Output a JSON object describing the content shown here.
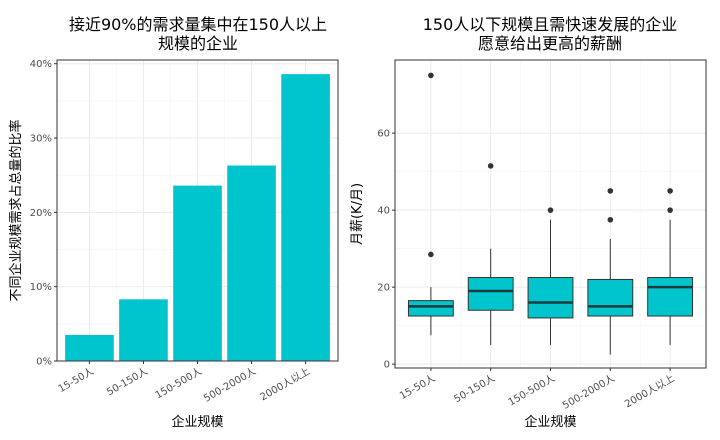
{
  "chart_data": [
    {
      "type": "bar",
      "title_lines": [
        "接近90%的需求量集中在150人以上",
        "规模的企业"
      ],
      "xlabel": "企业规模",
      "ylabel": "不同企业规模需求占总量的比率",
      "categories": [
        "15-50人",
        "50-150人",
        "150-500人",
        "500-2000人",
        "2000人以上"
      ],
      "values": [
        0.035,
        0.083,
        0.236,
        0.263,
        0.386
      ],
      "ylim": [
        0,
        0.405
      ],
      "yticks": [
        0,
        0.1,
        0.2,
        0.3,
        0.4
      ],
      "ytick_labels": [
        "0%",
        "10%",
        "20%",
        "30%",
        "40%"
      ],
      "bar_color": "#00c5cd",
      "grid": true
    },
    {
      "type": "boxplot",
      "title_lines": [
        "150人以下规模且需快速发展的企业",
        "愿意给出更高的薪酬"
      ],
      "xlabel": "企业规模",
      "ylabel": "月薪(K/月)",
      "categories": [
        "15-50人",
        "50-150人",
        "150-500人",
        "500-2000人",
        "2000人以上"
      ],
      "boxes": [
        {
          "whisker_low": 7.5,
          "q1": 12.5,
          "median": 15,
          "q3": 16.5,
          "whisker_high": 20,
          "outliers": [
            75,
            28.5
          ]
        },
        {
          "whisker_low": 5,
          "q1": 14,
          "median": 19,
          "q3": 22.5,
          "whisker_high": 30,
          "outliers": [
            51.5
          ]
        },
        {
          "whisker_low": 5,
          "q1": 12,
          "median": 16,
          "q3": 22.5,
          "whisker_high": 37.5,
          "outliers": [
            40
          ]
        },
        {
          "whisker_low": 2.5,
          "q1": 12.5,
          "median": 15,
          "q3": 22,
          "whisker_high": 32.5,
          "outliers": [
            45,
            37.5
          ]
        },
        {
          "whisker_low": 5,
          "q1": 12.5,
          "median": 20,
          "q3": 22.5,
          "whisker_high": 37.5,
          "outliers": [
            45,
            40
          ]
        }
      ],
      "ylim": [
        -1,
        79
      ],
      "yticks": [
        0,
        20,
        40,
        60
      ],
      "ytick_labels": [
        "0",
        "20",
        "40",
        "60"
      ],
      "box_color": "#00c5cd",
      "grid": true
    }
  ]
}
